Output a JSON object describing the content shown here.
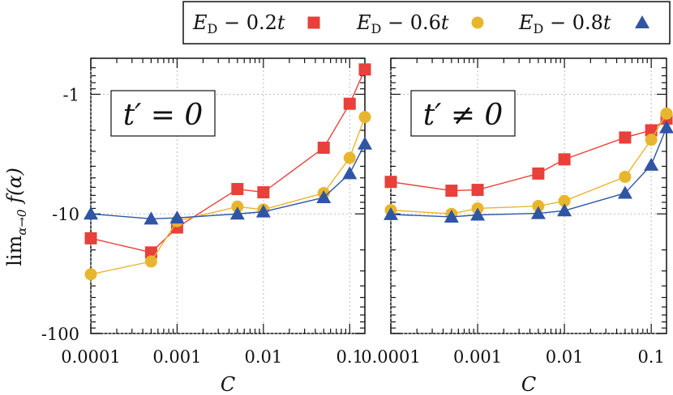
{
  "chart_data": {
    "type": "scatter",
    "xscale": "log",
    "yscale": "log",
    "xlim": [
      0.0001,
      0.15
    ],
    "ylim": [
      100,
      0.5
    ],
    "xticks": [
      0.0001,
      0.001,
      0.01,
      0.1
    ],
    "xtick_labels": [
      "0.0001",
      "0.001",
      "0.01",
      "0.1"
    ],
    "yticks": [
      1,
      10,
      100
    ],
    "ytick_labels": [
      "-1",
      "-10",
      "-100"
    ],
    "xlabel": "C",
    "ylabel": "lim_{α→0} f(α)",
    "grid": true,
    "legend_position": "top-right",
    "series_colors": [
      "#e8403a",
      "#e8b62e",
      "#2f55a4"
    ],
    "series_markers": [
      "square",
      "circle",
      "triangle"
    ],
    "legend_entries": [
      "E_D − 0.2t",
      "E_D − 0.6t",
      "E_D − 0.8t"
    ],
    "panels": [
      {
        "label": "t′ = 0",
        "series": [
          {
            "x": [
              0.0001,
              0.0005,
              0.001,
              0.005,
              0.01,
              0.05,
              0.1,
              0.15
            ],
            "y": [
              16,
              21,
              13,
              6.2,
              6.6,
              2.8,
              1.2,
              0.62
            ]
          },
          {
            "x": [
              0.0001,
              0.0005,
              0.001,
              0.005,
              0.01,
              0.05,
              0.1,
              0.15
            ],
            "y": [
              32,
              25,
              11.5,
              8.7,
              9.2,
              6.7,
              3.4,
              1.55
            ]
          },
          {
            "x": [
              0.0001,
              0.0005,
              0.001,
              0.005,
              0.01,
              0.05,
              0.1,
              0.15
            ],
            "y": [
              10,
              11,
              10.8,
              10,
              9.6,
              7.3,
              4.6,
              2.6
            ]
          }
        ]
      },
      {
        "label": "t′ ≠ 0",
        "series": [
          {
            "x": [
              0.0001,
              0.0005,
              0.001,
              0.005,
              0.01,
              0.05,
              0.1,
              0.15
            ],
            "y": [
              5.4,
              6.4,
              6.3,
              4.6,
              3.5,
              2.3,
              2.0,
              1.6
            ]
          },
          {
            "x": [
              0.0001,
              0.0005,
              0.001,
              0.005,
              0.01,
              0.05,
              0.1,
              0.15
            ],
            "y": [
              9.3,
              10.0,
              9.0,
              8.6,
              7.8,
              4.9,
              2.4,
              1.45
            ]
          },
          {
            "x": [
              0.0001,
              0.0005,
              0.001,
              0.005,
              0.01,
              0.05,
              0.1,
              0.15
            ],
            "y": [
              10.1,
              10.6,
              10.2,
              9.9,
              9.4,
              6.7,
              3.9,
              1.9
            ]
          }
        ]
      }
    ]
  }
}
